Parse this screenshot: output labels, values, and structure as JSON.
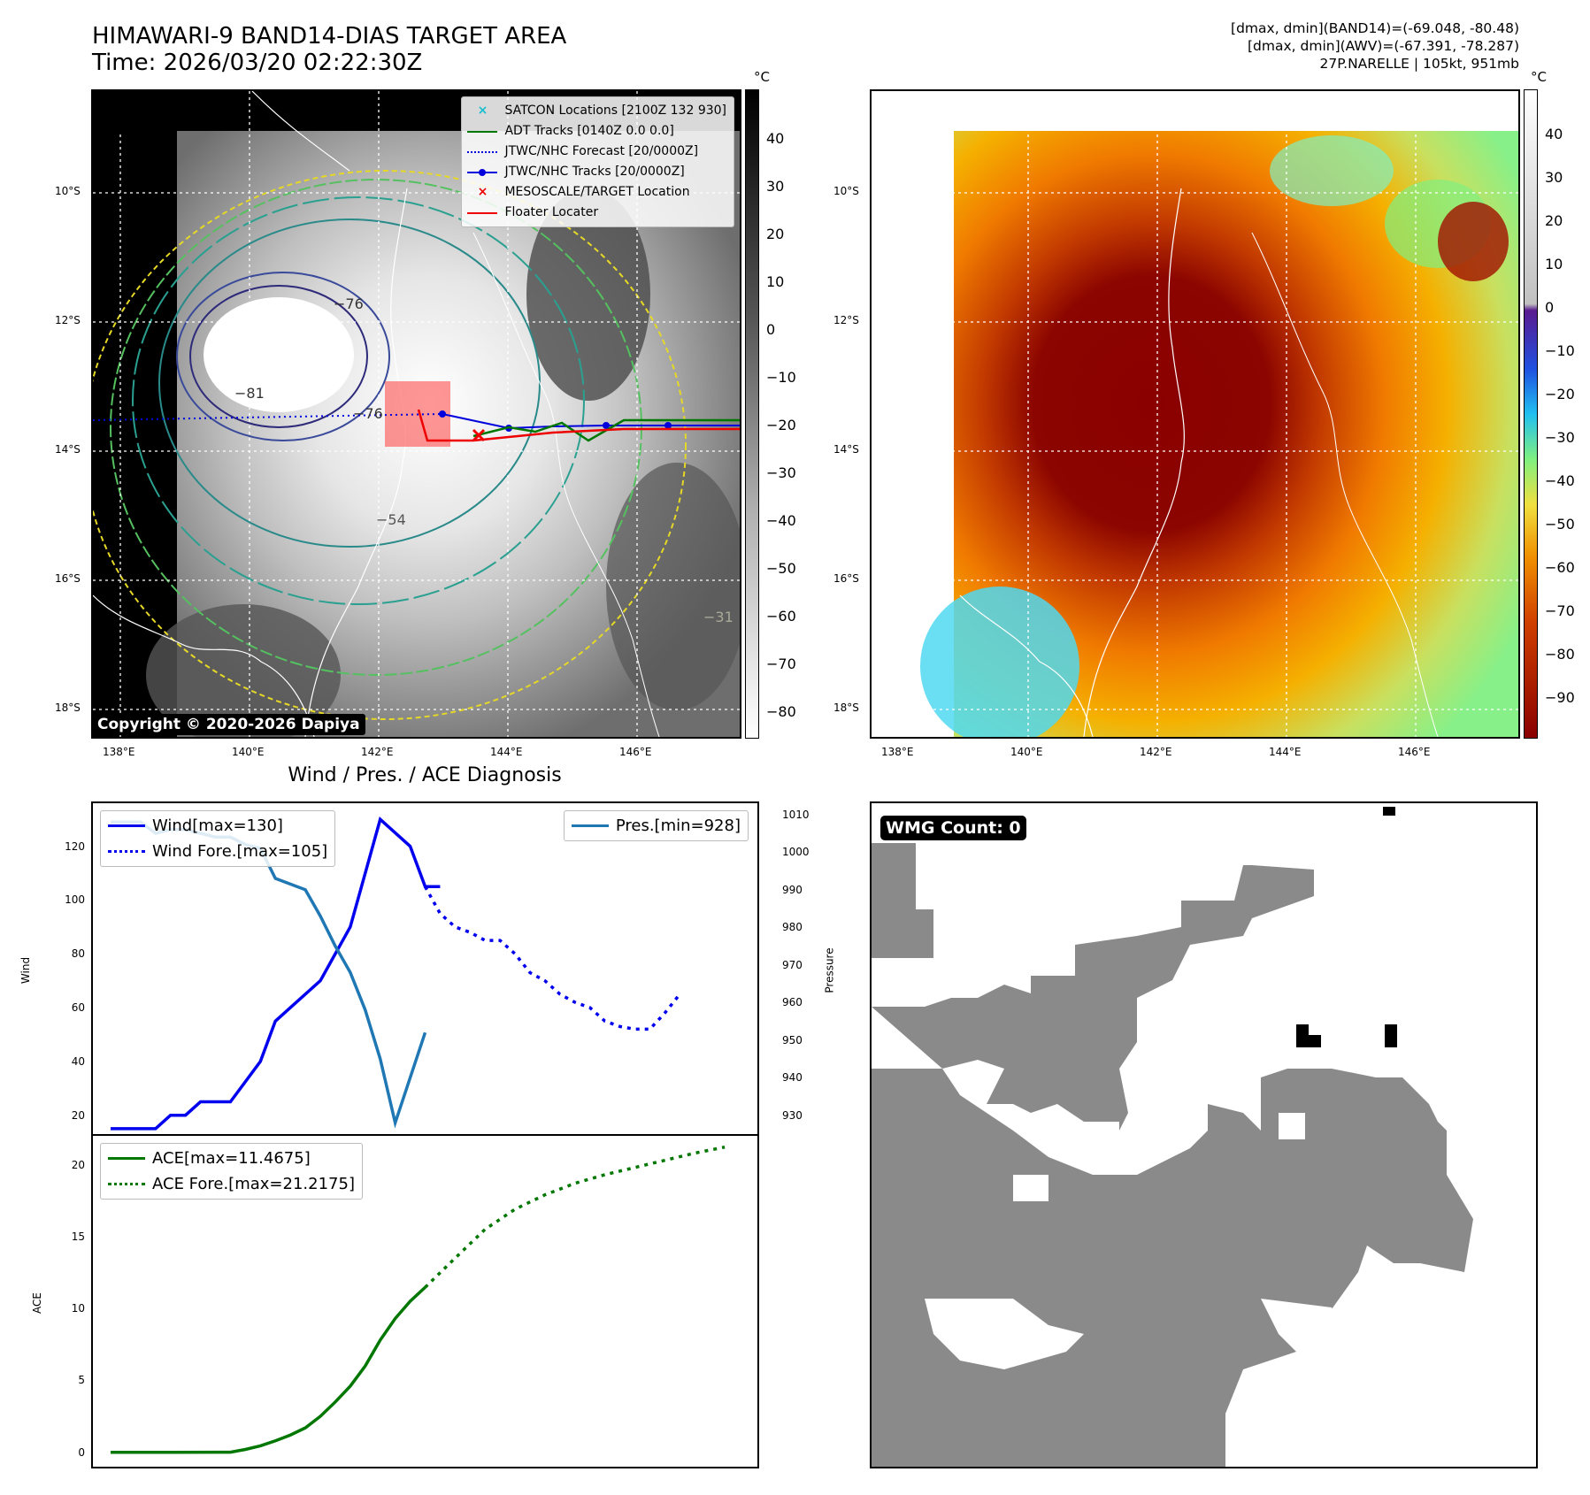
{
  "header": {
    "title_line1": "HIMAWARI-9 BAND14-DIAS TARGET AREA",
    "title_line2": "Time: 2026/03/20 02:22:30Z",
    "right_line1": "[dmax, dmin](BAND14)=(-69.048, -80.48)",
    "right_line2": "[dmax, dmin](AWV)=(-67.391, -78.287)",
    "right_line3": "27P.NARELLE | 105kt, 951mb"
  },
  "map_axes": {
    "lon_ticks": [
      "138°E",
      "140°E",
      "142°E",
      "144°E",
      "146°E"
    ],
    "lat_ticks": [
      "10°S",
      "12°S",
      "14°S",
      "16°S",
      "18°S"
    ]
  },
  "ir_panel": {
    "legend": [
      {
        "label": "SATCON Locations [2100Z 132 930]",
        "color": "#17becf",
        "marker": "x"
      },
      {
        "label": "ADT Tracks [0140Z 0.0 0.0]",
        "color": "#007700",
        "style": "solid"
      },
      {
        "label": "JTWC/NHC Forecast [20/0000Z]",
        "color": "#0000dd",
        "style": "dotted"
      },
      {
        "label": "JTWC/NHC Tracks [20/0000Z]",
        "color": "#0000dd",
        "style": "solid-dot"
      },
      {
        "label": "MESOSCALE/TARGET Location",
        "color": "#ee0000",
        "marker": "x"
      },
      {
        "label": "Floater Locater",
        "color": "#ee0000",
        "style": "solid"
      }
    ],
    "contour_labels": [
      "-76",
      "-81",
      "-76",
      "-54",
      "-31"
    ],
    "copyright": "Copyright © 2020-2026 Dapiya",
    "colorbar_unit": "°C",
    "colorbar_ticks": [
      "40",
      "30",
      "20",
      "10",
      "0",
      "−10",
      "−20",
      "−30",
      "−40",
      "−50",
      "−60",
      "−70",
      "−80"
    ]
  },
  "awv_panel": {
    "colorbar_unit": "°C",
    "colorbar_ticks": [
      "40",
      "30",
      "20",
      "10",
      "0",
      "−10",
      "−20",
      "−30",
      "−40",
      "−50",
      "−60",
      "−70",
      "−80",
      "−90"
    ]
  },
  "diagnosis": {
    "title": "Wind / Pres. / ACE Diagnosis",
    "wind_ylabel": "Wind",
    "pressure_ylabel": "Pressure",
    "ace_ylabel": "ACE",
    "wind_legend": [
      "Wind[max=130]",
      "Wind Fore.[max=105]"
    ],
    "pres_legend": [
      "Pres.[min=928]"
    ],
    "ace_legend": [
      "ACE[max=11.4675]",
      "ACE Fore.[max=21.2175]"
    ]
  },
  "wmg_panel": {
    "label": "WMG Count: 0"
  },
  "chart_data": [
    {
      "type": "line",
      "title": "Wind / Pres. / ACE Diagnosis",
      "ylabel": "Wind",
      "ylim": [
        13,
        136
      ],
      "y_ticks": [
        20,
        40,
        60,
        80,
        100,
        120
      ],
      "xlim": [
        0,
        42
      ],
      "series": [
        {
          "name": "Wind[max=130]",
          "color": "#0000ee",
          "style": "solid",
          "x": [
            0,
            3,
            4,
            5,
            6,
            8,
            10,
            11,
            12,
            14,
            15,
            16,
            17,
            18,
            19,
            20,
            21,
            22
          ],
          "values": [
            15,
            15,
            20,
            20,
            25,
            25,
            40,
            55,
            60,
            70,
            80,
            90,
            110,
            130,
            125,
            120,
            105,
            105
          ]
        },
        {
          "name": "Wind Fore.[max=105]",
          "color": "#0000ee",
          "style": "dotted",
          "x": [
            21,
            22,
            23,
            24,
            25,
            26,
            27,
            28,
            29,
            30,
            31,
            32,
            33,
            34,
            35,
            36,
            37,
            38
          ],
          "values": [
            105,
            95,
            90,
            88,
            85,
            85,
            80,
            73,
            70,
            65,
            62,
            60,
            55,
            53,
            52,
            52,
            58,
            65
          ]
        }
      ]
    },
    {
      "type": "line",
      "ylabel": "Pressure",
      "ylim": [
        925,
        1013
      ],
      "y_ticks": [
        930,
        940,
        950,
        960,
        970,
        980,
        990,
        1000,
        1010
      ],
      "xlim": [
        0,
        42
      ],
      "series": [
        {
          "name": "Pres.[min=928]",
          "color": "#1f77b4",
          "style": "solid",
          "x": [
            0,
            2,
            3,
            4,
            5,
            6,
            7,
            8,
            9,
            10,
            11,
            13,
            14,
            15,
            16,
            17,
            18,
            19,
            20,
            21
          ],
          "values": [
            1008,
            1008,
            1005,
            1006,
            1006,
            1005,
            1004,
            1004,
            1002,
            1001,
            993,
            990,
            983,
            975,
            968,
            958,
            945,
            928,
            940,
            952
          ]
        }
      ]
    },
    {
      "type": "line",
      "ylabel": "ACE",
      "ylim": [
        -1,
        22
      ],
      "y_ticks": [
        0,
        5,
        10,
        15,
        20
      ],
      "xlim": [
        0,
        42
      ],
      "series": [
        {
          "name": "ACE[max=11.4675]",
          "color": "#007700",
          "style": "solid",
          "x": [
            0,
            4,
            8,
            9,
            10,
            11,
            12,
            13,
            14,
            15,
            16,
            17,
            18,
            19,
            20,
            21
          ],
          "values": [
            0,
            0,
            0.01,
            0.2,
            0.45,
            0.8,
            1.2,
            1.7,
            2.5,
            3.5,
            4.6,
            6,
            7.8,
            9.3,
            10.5,
            11.4675
          ]
        },
        {
          "name": "ACE Fore.[max=21.2175]",
          "color": "#007700",
          "style": "dotted",
          "x": [
            21,
            23,
            25,
            27,
            29,
            31,
            33,
            35,
            37,
            39,
            41
          ],
          "values": [
            11.4675,
            13.5,
            15.5,
            16.9,
            17.9,
            18.7,
            19.3,
            19.8,
            20.3,
            20.8,
            21.2175
          ]
        }
      ]
    }
  ]
}
